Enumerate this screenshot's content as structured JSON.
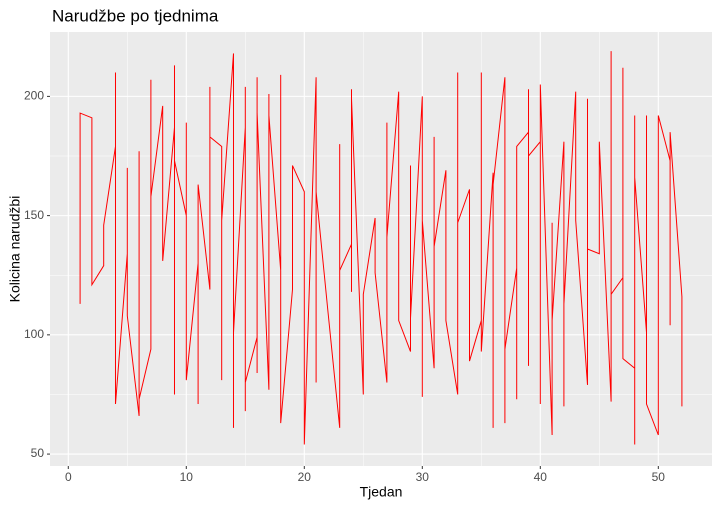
{
  "chart_data": {
    "type": "line",
    "title": "Narudžbe po tjednima",
    "x_label": "Tjedan",
    "y_label": "Kolicina narudžbi",
    "x": [
      1,
      1,
      2,
      2,
      3,
      3,
      4,
      4,
      4,
      5,
      5,
      5,
      6,
      6,
      6,
      7,
      7,
      7,
      8,
      8,
      9,
      9,
      9,
      9,
      10,
      10,
      10,
      11,
      11,
      11,
      12,
      12,
      12,
      13,
      13,
      13,
      14,
      14,
      14,
      15,
      15,
      15,
      15,
      16,
      16,
      16,
      16,
      17,
      17,
      17,
      18,
      18,
      18,
      19,
      19,
      20,
      20,
      21,
      21,
      21,
      22,
      23,
      23,
      23,
      24,
      24,
      24,
      24,
      25,
      25,
      26,
      26,
      27,
      27,
      27,
      28,
      28,
      29,
      29,
      29,
      30,
      30,
      30,
      31,
      31,
      31,
      32,
      32,
      33,
      33,
      33,
      34,
      34,
      35,
      35,
      35,
      36,
      36,
      36,
      37,
      37,
      37,
      38,
      38,
      38,
      39,
      39,
      39,
      39,
      40,
      40,
      40,
      41,
      41,
      41,
      42,
      42,
      42,
      43,
      43,
      44,
      44,
      44,
      45,
      45,
      46,
      46,
      46,
      47,
      47,
      47,
      48,
      48,
      48,
      48,
      49,
      49,
      49,
      50,
      50,
      51,
      51,
      51,
      52,
      52
    ],
    "series": [
      {
        "color": "#FF0000",
        "values": [
          113,
          193,
          191,
          121,
          129,
          146,
          179,
          210,
          71,
          134,
          170,
          108,
          66,
          177,
          73,
          94,
          207,
          158,
          196,
          131,
          187,
          213,
          75,
          173,
          150,
          189,
          81,
          130,
          71,
          163,
          119,
          204,
          183,
          179,
          81,
          148,
          218,
          61,
          101,
          187,
          204,
          68,
          80,
          99,
          208,
          84,
          193,
          77,
          201,
          192,
          127,
          209,
          63,
          119,
          171,
          160,
          54,
          208,
          80,
          160,
          110,
          61,
          180,
          127,
          138,
          118,
          203,
          199,
          75,
          117,
          149,
          126,
          80,
          189,
          141,
          202,
          106,
          93,
          171,
          107,
          200,
          74,
          148,
          86,
          183,
          137,
          169,
          106,
          75,
          210,
          147,
          161,
          89,
          106,
          210,
          93,
          168,
          61,
          163,
          208,
          63,
          94,
          128,
          73,
          179,
          185,
          87,
          203,
          175,
          181,
          71,
          205,
          58,
          147,
          106,
          181,
          70,
          113,
          202,
          148,
          79,
          199,
          136,
          134,
          181,
          72,
          219,
          117,
          124,
          212,
          90,
          86,
          54,
          192,
          166,
          101,
          192,
          71,
          58,
          192,
          173,
          104,
          185,
          116,
          70
        ]
      }
    ],
    "xlim": [
      -1.55,
      54.55
    ],
    "xticks": [
      0,
      10,
      20,
      30,
      40,
      50
    ],
    "ylim": [
      45,
      227
    ],
    "yticks": [
      50,
      100,
      150,
      200
    ],
    "grid": true
  }
}
